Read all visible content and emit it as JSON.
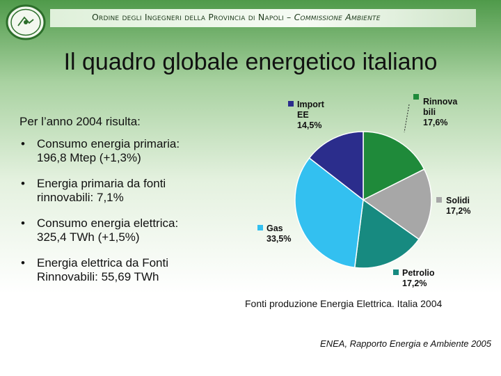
{
  "header": {
    "org_name": "Ordine degli Ingegneri della Provincia di Napoli",
    "separator": " – ",
    "commission": "Commissione Ambiente"
  },
  "slide": {
    "title": "Il quadro globale energetico italiano",
    "intro": "Per l’anno 2004 risulta:",
    "bullets": [
      {
        "dot": "•",
        "line1": "Consumo energia primaria:",
        "line2": "196,8 Mtep (+1,3%)"
      },
      {
        "dot": "•",
        "line1": "Energia primaria da fonti",
        "line2": "rinnovabili: 7,1%"
      },
      {
        "dot": "•",
        "line1": "Consumo energia elettrica:",
        "line2": "325,4 TWh (+1,5%)"
      },
      {
        "dot": "•",
        "line1": "Energia elettrica da Fonti",
        "line2": "Rinnovabili: 55,69 TWh"
      }
    ],
    "caption": "Fonti produzione Energia Elettrica. Italia 2004",
    "source": "ENEA, Rapporto Energia e Ambiente 2005"
  },
  "chart_data": {
    "type": "pie",
    "title": "Fonti produzione Energia Elettrica. Italia 2004",
    "series": [
      {
        "label_lines": [
          "Rinnova",
          "bili"
        ],
        "value_text": "17,6%",
        "value": 17.6,
        "color": "#1f8a3a"
      },
      {
        "label_lines": [
          "Solidi"
        ],
        "value_text": "17,2%",
        "value": 17.2,
        "color": "#a7a7a7"
      },
      {
        "label_lines": [
          "Petrolio"
        ],
        "value_text": "17,2%",
        "value": 17.2,
        "color": "#178a80"
      },
      {
        "label_lines": [
          "Gas"
        ],
        "value_text": "33,5%",
        "value": 33.5,
        "color": "#33c0f0"
      },
      {
        "label_lines": [
          "Import",
          "EE"
        ],
        "value_text": "14,5%",
        "value": 14.5,
        "color": "#2b2d8c"
      }
    ],
    "start_angle_deg": 0,
    "direction": "clockwise",
    "legend": "labels next to slices"
  }
}
